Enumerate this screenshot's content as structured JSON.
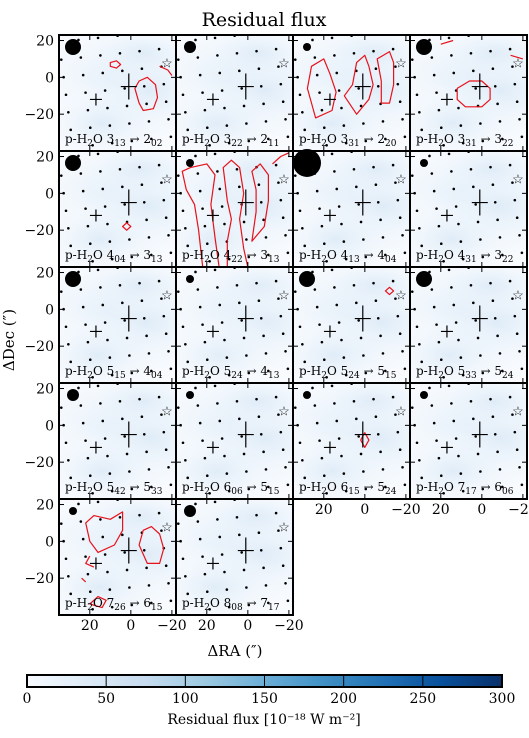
{
  "chart_data": {
    "type": "heatmap",
    "title": "Residual flux",
    "xlabel": "ΔRA (″)",
    "ylabel": "ΔDec (″)",
    "xlim": [
      35,
      -22
    ],
    "ylim": [
      -40,
      23
    ],
    "x_ticks": [
      {
        "v": 20,
        "label": "20"
      },
      {
        "v": 0,
        "label": "0"
      },
      {
        "v": -20,
        "label": "−20"
      }
    ],
    "y_ticks": [
      {
        "v": 20,
        "label": "20"
      },
      {
        "v": 0,
        "label": "0"
      },
      {
        "v": -20,
        "label": "−20"
      }
    ],
    "colorbar": {
      "label": "Residual flux [10⁻¹⁸ W m⁻²]",
      "range": [
        0,
        300
      ],
      "colormap": "Blues",
      "ticks": [
        {
          "v": 0,
          "label": "0"
        },
        {
          "v": 50,
          "label": "50"
        },
        {
          "v": 100,
          "label": "100"
        },
        {
          "v": 150,
          "label": "150"
        },
        {
          "v": 200,
          "label": "200"
        },
        {
          "v": 250,
          "label": "250"
        },
        {
          "v": 300,
          "label": "300"
        }
      ]
    },
    "colors": {
      "contour": "#e8111a",
      "frame": "#000000",
      "low": "#f7fbff",
      "high": "#08306b"
    },
    "markers": {
      "star": [
        -22,
        8
      ],
      "big_cross": [
        1,
        -5
      ],
      "small_cross": [
        17,
        -12
      ]
    },
    "panels": [
      {
        "label": "p-H",
        "sub": "2",
        "mol": "O 3",
        "j1": "13",
        "arrow": " → 2",
        "j2": "02",
        "beam": 8,
        "residual_level": 12,
        "contours": [
          [
            [
              10,
              8
            ],
            [
              7,
              9
            ],
            [
              5,
              7
            ],
            [
              7,
              5
            ],
            [
              10,
              6
            ]
          ],
          [
            [
              -2,
              -6
            ],
            [
              -4,
              -14
            ],
            [
              -6,
              -18
            ],
            [
              -11,
              -17
            ],
            [
              -13,
              -11
            ],
            [
              -12,
              -4
            ],
            [
              -8,
              0
            ],
            [
              -4,
              -2
            ]
          ],
          [
            [
              -14,
              6
            ],
            [
              -18,
              4
            ],
            [
              -20,
              1
            ]
          ]
        ]
      },
      {
        "label": "p-H",
        "sub": "2",
        "mol": "O 3",
        "j1": "22",
        "arrow": " → 2",
        "j2": "11",
        "beam": 6,
        "residual_level": 10,
        "contours": []
      },
      {
        "label": "p-H",
        "sub": "2",
        "mol": "O 3",
        "j1": "31",
        "arrow": " → 2",
        "j2": "20",
        "beam": 4,
        "residual_level": 14,
        "contours": [
          [
            [
              24,
              -22
            ],
            [
              28,
              -6
            ],
            [
              26,
              6
            ],
            [
              20,
              10
            ],
            [
              17,
              2
            ],
            [
              14,
              -8
            ],
            [
              16,
              -18
            ]
          ],
          [
            [
              10,
              -10
            ],
            [
              6,
              -4
            ],
            [
              4,
              8
            ],
            [
              0,
              12
            ],
            [
              -2,
              6
            ],
            [
              -4,
              -4
            ],
            [
              -2,
              -12
            ],
            [
              4,
              -20
            ]
          ],
          [
            [
              -8,
              -14
            ],
            [
              -8,
              -2
            ],
            [
              -6,
              10
            ],
            [
              -12,
              14
            ],
            [
              -14,
              8
            ],
            [
              -14,
              -4
            ],
            [
              -12,
              -14
            ]
          ]
        ]
      },
      {
        "label": "p-H",
        "sub": "2",
        "mol": "O 3",
        "j1": "31",
        "arrow": " → 3",
        "j2": "22",
        "beam": 8,
        "residual_level": 14,
        "contours": [
          [
            [
              8,
              -16
            ],
            [
              12,
              -12
            ],
            [
              12,
              -6
            ],
            [
              6,
              -2
            ],
            [
              0,
              -2
            ],
            [
              -4,
              -6
            ],
            [
              -4,
              -12
            ],
            [
              0,
              -16
            ]
          ],
          [
            [
              -14,
              12
            ],
            [
              -20,
              10
            ]
          ],
          [
            [
              20,
              18
            ],
            [
              14,
              20
            ]
          ]
        ]
      },
      {
        "label": "p-H",
        "sub": "2",
        "mol": "O 4",
        "j1": "04",
        "arrow": " → 3",
        "j2": "13",
        "beam": 8,
        "residual_level": 10,
        "contours": [
          [
            [
              4,
              -18
            ],
            [
              2,
              -16
            ],
            [
              0,
              -18
            ],
            [
              2,
              -20
            ]
          ]
        ]
      },
      {
        "label": "p-H",
        "sub": "2",
        "mol": "O 4",
        "j1": "22",
        "arrow": " → 3",
        "j2": "13",
        "beam": 4,
        "residual_level": 16,
        "contours": [
          [
            [
              22,
              -40
            ],
            [
              24,
              -20
            ],
            [
              26,
              -6
            ],
            [
              30,
              2
            ],
            [
              32,
              12
            ],
            [
              28,
              14
            ],
            [
              20,
              16
            ],
            [
              16,
              10
            ],
            [
              18,
              -6
            ],
            [
              16,
              -24
            ],
            [
              14,
              -40
            ]
          ],
          [
            [
              10,
              -40
            ],
            [
              10,
              -26
            ],
            [
              8,
              -14
            ],
            [
              10,
              -4
            ],
            [
              12,
              14
            ],
            [
              8,
              18
            ],
            [
              4,
              14
            ],
            [
              2,
              0
            ],
            [
              4,
              -14
            ],
            [
              2,
              -30
            ],
            [
              0,
              -40
            ]
          ],
          [
            [
              -2,
              -26
            ],
            [
              -4,
              -10
            ],
            [
              -4,
              2
            ],
            [
              -2,
              12
            ],
            [
              -6,
              16
            ],
            [
              -10,
              10
            ],
            [
              -10,
              -4
            ],
            [
              -8,
              -18
            ]
          ],
          [
            [
              -12,
              16
            ],
            [
              -16,
              20
            ],
            [
              -20,
              22
            ]
          ]
        ]
      },
      {
        "label": "p-H",
        "sub": "2",
        "mol": "O 4",
        "j1": "13",
        "arrow": " → 4",
        "j2": "04",
        "beam": 14,
        "residual_level": 12,
        "contours": []
      },
      {
        "label": "p-H",
        "sub": "2",
        "mol": "O 4",
        "j1": "31",
        "arrow": " → 3",
        "j2": "22",
        "beam": 4,
        "residual_level": 10,
        "contours": []
      },
      {
        "label": "p-H",
        "sub": "2",
        "mol": "O 5",
        "j1": "15",
        "arrow": " → 4",
        "j2": "04",
        "beam": 8,
        "residual_level": 10,
        "contours": []
      },
      {
        "label": "p-H",
        "sub": "2",
        "mol": "O 5",
        "j1": "24",
        "arrow": " → 4",
        "j2": "13",
        "beam": 4,
        "residual_level": 8,
        "contours": []
      },
      {
        "label": "p-H",
        "sub": "2",
        "mol": "O 5",
        "j1": "24",
        "arrow": " → 5",
        "j2": "15",
        "beam": 8,
        "residual_level": 10,
        "contours": [
          [
            [
              -10,
              10
            ],
            [
              -12,
              12
            ],
            [
              -14,
              10
            ],
            [
              -12,
              8
            ]
          ]
        ]
      },
      {
        "label": "p-H",
        "sub": "2",
        "mol": "O 5",
        "j1": "33",
        "arrow": " → 5",
        "j2": "24",
        "beam": 8,
        "residual_level": 10,
        "contours": []
      },
      {
        "label": "p-H",
        "sub": "2",
        "mol": "O 5",
        "j1": "42",
        "arrow": " → 5",
        "j2": "33",
        "beam": 6,
        "residual_level": 10,
        "contours": []
      },
      {
        "label": "p-H",
        "sub": "2",
        "mol": "O 6",
        "j1": "06",
        "arrow": " → 5",
        "j2": "15",
        "beam": 4,
        "residual_level": 14,
        "contours": []
      },
      {
        "label": "p-H",
        "sub": "2",
        "mol": "O 6",
        "j1": "15",
        "arrow": " → 5",
        "j2": "24",
        "beam": 4,
        "residual_level": 10,
        "contours": [
          [
            [
              2,
              -8
            ],
            [
              0,
              -4
            ],
            [
              -2,
              -8
            ],
            [
              0,
              -12
            ]
          ]
        ]
      },
      {
        "label": "p-H",
        "sub": "2",
        "mol": "O 7",
        "j1": "17",
        "arrow": " → 6",
        "j2": "06",
        "beam": 4,
        "residual_level": 10,
        "contours": []
      },
      {
        "label": "p-H",
        "sub": "2",
        "mol": "O 7",
        "j1": "26",
        "arrow": " → 6",
        "j2": "15",
        "beam": 4,
        "residual_level": 14,
        "contours": [
          [
            [
              16,
              -6
            ],
            [
              20,
              0
            ],
            [
              22,
              10
            ],
            [
              18,
              14
            ],
            [
              10,
              12
            ],
            [
              4,
              16
            ],
            [
              4,
              6
            ],
            [
              8,
              -2
            ]
          ],
          [
            [
              -4,
              -2
            ],
            [
              -8,
              -12
            ],
            [
              -14,
              -12
            ],
            [
              -16,
              -4
            ],
            [
              -14,
              4
            ],
            [
              -10,
              8
            ],
            [
              -6,
              6
            ]
          ],
          [
            [
              20,
              -8
            ],
            [
              22,
              -12
            ],
            [
              18,
              -14
            ]
          ],
          [
            [
              14,
              -36
            ],
            [
              12,
              -32
            ],
            [
              16,
              -30
            ],
            [
              20,
              -34
            ]
          ],
          [
            [
              24,
              -20
            ],
            [
              22,
              -22
            ]
          ]
        ]
      },
      {
        "label": "p-H",
        "sub": "2",
        "mol": "O 8",
        "j1": "08",
        "arrow": " → 7",
        "j2": "17",
        "beam": 6,
        "residual_level": 12,
        "contours": []
      }
    ]
  }
}
